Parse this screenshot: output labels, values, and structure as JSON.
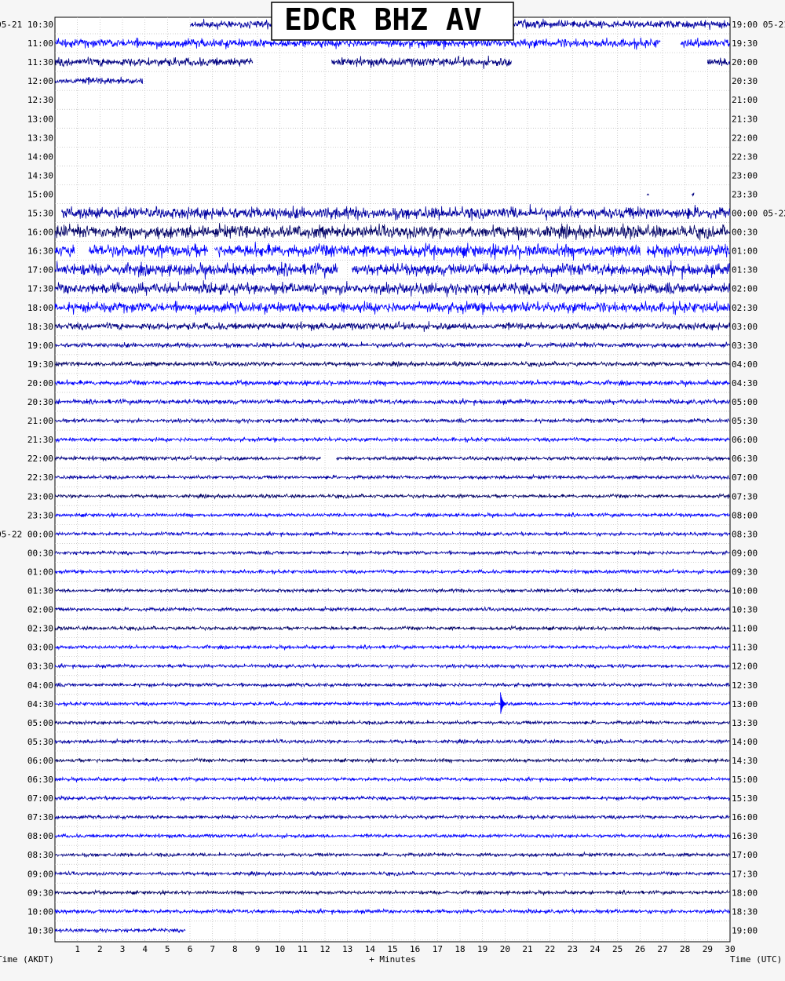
{
  "chart_data": {
    "type": "line",
    "title": "EDCR BHZ AV",
    "xlabel": "+ Minutes",
    "left_axis_title": "Time (AKDT)",
    "right_axis_title": "Time (UTC)",
    "xlim": [
      0,
      30
    ],
    "x_ticks": [
      "1",
      "2",
      "3",
      "4",
      "5",
      "6",
      "7",
      "8",
      "9",
      "10",
      "11",
      "12",
      "13",
      "14",
      "15",
      "16",
      "17",
      "18",
      "19",
      "20",
      "21",
      "22",
      "23",
      "24",
      "25",
      "26",
      "27",
      "28",
      "29",
      "30"
    ],
    "left_labels": [
      "05-21 10:30",
      "11:00",
      "11:30",
      "12:00",
      "12:30",
      "13:00",
      "13:30",
      "14:00",
      "14:30",
      "15:00",
      "15:30",
      "16:00",
      "16:30",
      "17:00",
      "17:30",
      "18:00",
      "18:30",
      "19:00",
      "19:30",
      "20:00",
      "20:30",
      "21:00",
      "21:30",
      "22:00",
      "22:30",
      "23:00",
      "23:30",
      "05-22 00:00",
      "00:30",
      "01:00",
      "01:30",
      "02:00",
      "02:30",
      "03:00",
      "03:30",
      "04:00",
      "04:30",
      "05:00",
      "05:30",
      "06:00",
      "06:30",
      "07:00",
      "07:30",
      "08:00",
      "08:30",
      "09:00",
      "09:30",
      "10:00",
      "10:30"
    ],
    "right_labels": [
      "19:00 05-21",
      "19:30",
      "20:00",
      "20:30",
      "21:00",
      "21:30",
      "22:00",
      "22:30",
      "23:00",
      "23:30",
      "00:00 05-22",
      "00:30",
      "01:00",
      "01:30",
      "02:00",
      "02:30",
      "03:00",
      "03:30",
      "04:00",
      "04:30",
      "05:00",
      "05:30",
      "06:00",
      "06:30",
      "07:00",
      "07:30",
      "08:00",
      "08:30",
      "09:00",
      "09:30",
      "10:00",
      "10:30",
      "11:00",
      "11:30",
      "12:00",
      "12:30",
      "13:00",
      "13:30",
      "14:00",
      "14:30",
      "15:00",
      "15:30",
      "16:00",
      "16:30",
      "17:00",
      "17:30",
      "18:00",
      "18:30",
      "19:00"
    ],
    "trace_colors": [
      "#0000a0",
      "#0000ff",
      "#000080",
      "#0000a0",
      "#000066",
      "#0000ff",
      "#0000cc"
    ],
    "series": [
      {
        "row": 0,
        "segments": [
          [
            6,
            30
          ]
        ],
        "amp": 1.0
      },
      {
        "row": 1,
        "segments": [
          [
            0,
            26.9
          ],
          [
            27.8,
            30
          ]
        ],
        "amp": 1.1
      },
      {
        "row": 2,
        "segments": [
          [
            0,
            8.8
          ],
          [
            12.3,
            20.3
          ],
          [
            29.0,
            30
          ]
        ],
        "amp": 1.1
      },
      {
        "row": 3,
        "segments": [
          [
            0,
            3.9
          ]
        ],
        "amp": 0.9
      },
      {
        "row": 4,
        "segments": [],
        "amp": 0
      },
      {
        "row": 5,
        "segments": [],
        "amp": 0
      },
      {
        "row": 6,
        "segments": [],
        "amp": 0
      },
      {
        "row": 7,
        "segments": [],
        "amp": 0
      },
      {
        "row": 8,
        "segments": [],
        "amp": 0
      },
      {
        "row": 9,
        "segments": [
          [
            26.3,
            26.4
          ],
          [
            28.3,
            28.4
          ]
        ],
        "amp": 0.6
      },
      {
        "row": 10,
        "segments": [
          [
            0.3,
            30
          ]
        ],
        "amp": 1.5
      },
      {
        "row": 11,
        "segments": [
          [
            0,
            30
          ]
        ],
        "amp": 1.6
      },
      {
        "row": 12,
        "segments": [
          [
            0,
            0.9
          ],
          [
            1.5,
            6.8
          ],
          [
            7.1,
            26.0
          ],
          [
            26.3,
            30
          ]
        ],
        "amp": 1.6
      },
      {
        "row": 13,
        "segments": [
          [
            0,
            12.6
          ],
          [
            13.2,
            30
          ]
        ],
        "amp": 1.5
      },
      {
        "row": 14,
        "segments": [
          [
            0,
            30
          ]
        ],
        "amp": 1.4
      },
      {
        "row": 15,
        "segments": [
          [
            0,
            30
          ]
        ],
        "amp": 1.3
      },
      {
        "row": 16,
        "segments": [
          [
            0,
            30
          ]
        ],
        "amp": 0.9
      },
      {
        "row": 17,
        "segments": [
          [
            0,
            30
          ]
        ],
        "amp": 0.6
      },
      {
        "row": 18,
        "segments": [
          [
            0,
            30
          ]
        ],
        "amp": 0.55
      },
      {
        "row": 19,
        "segments": [
          [
            0,
            30
          ]
        ],
        "amp": 0.6
      },
      {
        "row": 20,
        "segments": [
          [
            0,
            30
          ]
        ],
        "amp": 0.6
      },
      {
        "row": 21,
        "segments": [
          [
            0,
            30
          ]
        ],
        "amp": 0.5
      },
      {
        "row": 22,
        "segments": [
          [
            0,
            30
          ]
        ],
        "amp": 0.5
      },
      {
        "row": 23,
        "segments": [
          [
            0,
            11.8
          ],
          [
            12.5,
            30
          ]
        ],
        "amp": 0.5
      },
      {
        "row": 24,
        "segments": [
          [
            0,
            30
          ]
        ],
        "amp": 0.45
      },
      {
        "row": 25,
        "segments": [
          [
            0,
            30
          ]
        ],
        "amp": 0.45
      },
      {
        "row": 26,
        "segments": [
          [
            0,
            30
          ]
        ],
        "amp": 0.45
      },
      {
        "row": 27,
        "segments": [
          [
            0,
            30
          ]
        ],
        "amp": 0.45
      },
      {
        "row": 28,
        "segments": [
          [
            0,
            30
          ]
        ],
        "amp": 0.45
      },
      {
        "row": 29,
        "segments": [
          [
            0,
            30
          ]
        ],
        "amp": 0.45
      },
      {
        "row": 30,
        "segments": [
          [
            0,
            30
          ]
        ],
        "amp": 0.45
      },
      {
        "row": 31,
        "segments": [
          [
            0,
            30
          ]
        ],
        "amp": 0.45
      },
      {
        "row": 32,
        "segments": [
          [
            0,
            30
          ]
        ],
        "amp": 0.45
      },
      {
        "row": 33,
        "segments": [
          [
            0,
            30
          ]
        ],
        "amp": 0.45
      },
      {
        "row": 34,
        "segments": [
          [
            0,
            30
          ]
        ],
        "amp": 0.45
      },
      {
        "row": 35,
        "segments": [
          [
            0,
            30
          ]
        ],
        "amp": 0.45
      },
      {
        "row": 36,
        "segments": [
          [
            0,
            30
          ]
        ],
        "amp": 0.45
      },
      {
        "row": 37,
        "segments": [
          [
            0,
            30
          ]
        ],
        "amp": 0.45
      },
      {
        "row": 38,
        "segments": [
          [
            0,
            30
          ]
        ],
        "amp": 0.45
      },
      {
        "row": 39,
        "segments": [
          [
            0,
            30
          ]
        ],
        "amp": 0.45
      },
      {
        "row": 40,
        "segments": [
          [
            0,
            30
          ]
        ],
        "amp": 0.45
      },
      {
        "row": 41,
        "segments": [
          [
            0,
            30
          ]
        ],
        "amp": 0.45
      },
      {
        "row": 42,
        "segments": [
          [
            0,
            30
          ]
        ],
        "amp": 0.45
      },
      {
        "row": 43,
        "segments": [
          [
            0,
            30
          ]
        ],
        "amp": 0.45
      },
      {
        "row": 44,
        "segments": [
          [
            0,
            30
          ]
        ],
        "amp": 0.45
      },
      {
        "row": 45,
        "segments": [
          [
            0,
            30
          ]
        ],
        "amp": 0.45
      },
      {
        "row": 46,
        "segments": [
          [
            0,
            30
          ]
        ],
        "amp": 0.45
      },
      {
        "row": 47,
        "segments": [
          [
            0,
            30
          ]
        ],
        "amp": 0.5
      },
      {
        "row": 48,
        "segments": [
          [
            0,
            5.8
          ]
        ],
        "amp": 0.45
      }
    ],
    "events": [
      {
        "row": 36,
        "minute": 19.8,
        "amp": 1.6
      }
    ],
    "grid": true
  }
}
